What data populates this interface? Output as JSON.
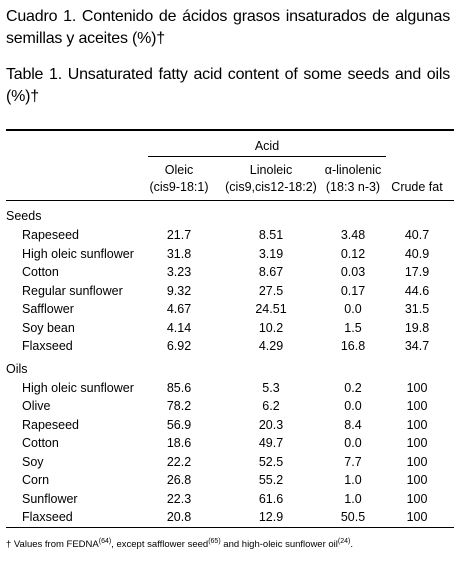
{
  "captions": {
    "es": "Cuadro 1. Contenido de ácidos grasos insaturados de algunas semillas y aceites (%)†",
    "en": "Table 1. Unsaturated fatty acid content of some seeds and oils (%)†"
  },
  "table": {
    "group_header": "Acid",
    "columns": [
      [
        "Oleic",
        "(cis9-18:1)"
      ],
      [
        "Linoleic",
        "(cis9,cis12-18:2)"
      ],
      [
        "α-linolenic",
        "(18:3 n-3)"
      ],
      [
        "Crude fat"
      ]
    ],
    "sections": [
      {
        "name": "Seeds",
        "rows": [
          [
            "Rapeseed",
            "21.7",
            "8.51",
            "3.48",
            "40.7"
          ],
          [
            "High oleic sunflower",
            "31.8",
            "3.19",
            "0.12",
            "40.9"
          ],
          [
            "Cotton",
            "3.23",
            "8.67",
            "0.03",
            "17.9"
          ],
          [
            "Regular sunflower",
            "9.32",
            "27.5",
            "0.17",
            "44.6"
          ],
          [
            "Safflower",
            "4.67",
            "24.51",
            "0.0",
            "31.5"
          ],
          [
            "Soy bean",
            "4.14",
            "10.2",
            "1.5",
            "19.8"
          ],
          [
            "Flaxseed",
            "6.92",
            "4.29",
            "16.8",
            "34.7"
          ]
        ]
      },
      {
        "name": "Oils",
        "rows": [
          [
            "High oleic sunflower",
            "85.6",
            "5.3",
            "0.2",
            "100"
          ],
          [
            "Olive",
            "78.2",
            "6.2",
            "0.0",
            "100"
          ],
          [
            "Rapeseed",
            "56.9",
            "20.3",
            "8.4",
            "100"
          ],
          [
            "Cotton",
            "18.6",
            "49.7",
            "0.0",
            "100"
          ],
          [
            "Soy",
            "22.2",
            "52.5",
            "7.7",
            "100"
          ],
          [
            "Corn",
            "26.8",
            "55.2",
            "1.0",
            "100"
          ],
          [
            "Sunflower",
            "22.3",
            "61.6",
            "1.0",
            "100"
          ],
          [
            "Flaxseed",
            "20.8",
            "12.9",
            "50.5",
            "100"
          ]
        ]
      }
    ]
  },
  "footnote": [
    "† Values from FEDNA",
    "(64)",
    ", except safflower seed",
    "(65)",
    " and high-oleic sunflower oil",
    "(24)",
    "."
  ]
}
